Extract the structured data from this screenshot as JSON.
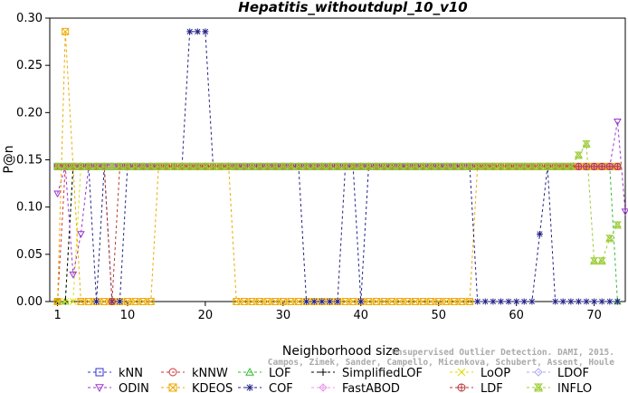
{
  "chart_data": {
    "type": "line",
    "title": "Hepatitis_withoutdupl_10_v10",
    "xlabel": "Neighborhood size",
    "ylabel": "P@n",
    "xlim": [
      0,
      74
    ],
    "ylim": [
      0,
      0.3
    ],
    "xticks": [
      1,
      10,
      20,
      30,
      40,
      50,
      60,
      70
    ],
    "yticks": [
      0.0,
      0.05,
      0.1,
      0.15,
      0.2,
      0.25,
      0.3
    ],
    "ytick_labels": [
      "0.00",
      "0.05",
      "0.10",
      "0.15",
      "0.20",
      "0.25",
      "0.30"
    ],
    "grid": false,
    "legend_position": "bottom",
    "watermark": [
      "Unsupervised Outlier Detection. DAMI, 2015.",
      "Campos, Zimek, Sander, Campello, Micenkova, Schubert, Assent, Houle"
    ],
    "series": [
      {
        "name": "kNN",
        "color": "#3333cc",
        "marker": "square",
        "points": [
          [
            1,
            0.1429
          ],
          [
            73,
            0.1429
          ]
        ]
      },
      {
        "name": "kNNW",
        "color": "#cc3333",
        "marker": "circle",
        "points": [
          [
            1,
            0.0
          ],
          [
            2,
            0.1429
          ],
          [
            3,
            0.1429
          ],
          [
            73,
            0.1429
          ]
        ]
      },
      {
        "name": "LOF",
        "color": "#33bb33",
        "marker": "triangle-up",
        "points": [
          [
            1,
            0.0
          ],
          [
            2,
            0.0
          ],
          [
            3,
            0.1429
          ],
          [
            72,
            0.1429
          ],
          [
            73,
            0.0
          ]
        ]
      },
      {
        "name": "SimplifiedLOF",
        "color": "#000000",
        "marker": "plus",
        "points": [
          [
            1,
            0.0
          ],
          [
            2,
            0.0
          ],
          [
            3,
            0.1429
          ],
          [
            73,
            0.1429
          ]
        ]
      },
      {
        "name": "LoOP",
        "color": "#dddd00",
        "marker": "x",
        "points": [
          [
            1,
            0.0
          ],
          [
            2,
            0.0
          ],
          [
            3,
            0.0
          ],
          [
            4,
            0.1429
          ],
          [
            73,
            0.1429
          ]
        ]
      },
      {
        "name": "LDOF",
        "color": "#aaaaee",
        "marker": "diamond",
        "points": [
          [
            1,
            0.1429
          ],
          [
            73,
            0.1429
          ]
        ]
      },
      {
        "name": "ODIN",
        "color": "#9933cc",
        "marker": "triangle-down",
        "points": [
          [
            1,
            0.1143
          ],
          [
            2,
            0.1429
          ],
          [
            3,
            0.0286
          ],
          [
            4,
            0.0714
          ],
          [
            5,
            0.1429
          ],
          [
            71,
            0.1429
          ],
          [
            72,
            0.1429
          ],
          [
            73,
            0.1905
          ],
          [
            74,
            0.0952
          ]
        ]
      },
      {
        "name": "KDEOS",
        "color": "#eeaa00",
        "marker": "square-x",
        "points": [
          [
            1,
            0.0
          ],
          [
            2,
            0.2857
          ],
          [
            3,
            0.1429
          ],
          [
            4,
            0.0
          ],
          [
            5,
            0.0
          ],
          [
            6,
            0.0
          ],
          [
            7,
            0.0
          ],
          [
            8,
            0.0
          ],
          [
            9,
            0.0
          ],
          [
            10,
            0.0
          ],
          [
            11,
            0.0
          ],
          [
            12,
            0.0
          ],
          [
            13,
            0.0
          ],
          [
            14,
            0.1429
          ],
          [
            23,
            0.1429
          ],
          [
            24,
            0.0
          ],
          [
            25,
            0.0
          ],
          [
            26,
            0.0
          ],
          [
            27,
            0.0
          ],
          [
            28,
            0.0
          ],
          [
            29,
            0.0
          ],
          [
            30,
            0.0
          ],
          [
            31,
            0.0
          ],
          [
            32,
            0.0
          ],
          [
            33,
            0.0
          ],
          [
            34,
            0.0
          ],
          [
            35,
            0.0
          ],
          [
            36,
            0.0
          ],
          [
            37,
            0.0
          ],
          [
            38,
            0.0
          ],
          [
            39,
            0.0
          ],
          [
            40,
            0.0
          ],
          [
            41,
            0.0
          ],
          [
            42,
            0.0
          ],
          [
            43,
            0.0
          ],
          [
            44,
            0.0
          ],
          [
            45,
            0.0
          ],
          [
            46,
            0.0
          ],
          [
            47,
            0.0
          ],
          [
            48,
            0.0
          ],
          [
            49,
            0.0
          ],
          [
            50,
            0.0
          ],
          [
            51,
            0.0
          ],
          [
            52,
            0.0
          ],
          [
            53,
            0.0
          ],
          [
            54,
            0.0
          ],
          [
            55,
            0.1429
          ],
          [
            73,
            0.1429
          ]
        ]
      },
      {
        "name": "COF",
        "color": "#222288",
        "marker": "asterisk",
        "points": [
          [
            1,
            0.1429
          ],
          [
            5,
            0.1429
          ],
          [
            6,
            0.0
          ],
          [
            7,
            0.1429
          ],
          [
            8,
            0.0
          ],
          [
            9,
            0.0
          ],
          [
            10,
            0.1429
          ],
          [
            17,
            0.1429
          ],
          [
            18,
            0.2857
          ],
          [
            19,
            0.2857
          ],
          [
            20,
            0.2857
          ],
          [
            21,
            0.1429
          ],
          [
            32,
            0.1429
          ],
          [
            33,
            0.0
          ],
          [
            34,
            0.0
          ],
          [
            35,
            0.0
          ],
          [
            36,
            0.0
          ],
          [
            37,
            0.0
          ],
          [
            38,
            0.1429
          ],
          [
            39,
            0.1429
          ],
          [
            40,
            0.0
          ],
          [
            41,
            0.1429
          ],
          [
            54,
            0.1429
          ],
          [
            55,
            0.0
          ],
          [
            56,
            0.0
          ],
          [
            57,
            0.0
          ],
          [
            58,
            0.0
          ],
          [
            59,
            0.0
          ],
          [
            60,
            0.0
          ],
          [
            61,
            0.0
          ],
          [
            62,
            0.0
          ],
          [
            63,
            0.0714
          ],
          [
            64,
            0.1429
          ],
          [
            65,
            0.0
          ],
          [
            66,
            0.0
          ],
          [
            67,
            0.0
          ],
          [
            68,
            0.0
          ],
          [
            69,
            0.0
          ],
          [
            70,
            0.0
          ],
          [
            71,
            0.0
          ],
          [
            72,
            0.0
          ],
          [
            73,
            0.0
          ]
        ]
      },
      {
        "name": "FastABOD",
        "color": "#ee99ee",
        "marker": "diamond-plus",
        "points": [
          [
            1,
            0.1429
          ],
          [
            73,
            0.1429
          ]
        ]
      },
      {
        "name": "LDF",
        "color": "#bb3333",
        "marker": "circle-plus",
        "points": [
          [
            1,
            0.1429
          ],
          [
            7,
            0.1429
          ],
          [
            8,
            0.0
          ],
          [
            9,
            0.1429
          ],
          [
            73,
            0.1429
          ]
        ]
      },
      {
        "name": "INFLO",
        "color": "#99cc33",
        "marker": "hourglass",
        "points": [
          [
            1,
            0.1429
          ],
          [
            67,
            0.1429
          ],
          [
            68,
            0.1548
          ],
          [
            69,
            0.1667
          ],
          [
            70,
            0.0429
          ],
          [
            71,
            0.0429
          ],
          [
            72,
            0.0667
          ],
          [
            73,
            0.081
          ]
        ]
      }
    ]
  }
}
